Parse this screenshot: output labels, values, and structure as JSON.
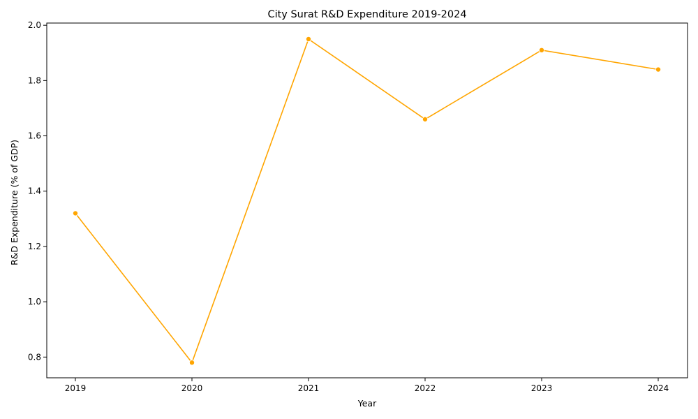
{
  "chart_data": {
    "type": "line",
    "title": "City Surat R&D Expenditure 2019-2024",
    "xlabel": "Year",
    "ylabel": "R&D Expenditure (% of GDP)",
    "x": [
      "2019",
      "2020",
      "2021",
      "2022",
      "2023",
      "2024"
    ],
    "series": [
      {
        "values": [
          1.32,
          0.78,
          1.95,
          1.66,
          1.91,
          1.84
        ],
        "color": "#FFA500"
      }
    ],
    "yticks": [
      "0.8",
      "1.0",
      "1.2",
      "1.4",
      "1.6",
      "1.8",
      "2.0"
    ],
    "ylim": [
      0.725,
      2.008
    ],
    "grid": false,
    "legend": "none",
    "marker": "circle"
  }
}
